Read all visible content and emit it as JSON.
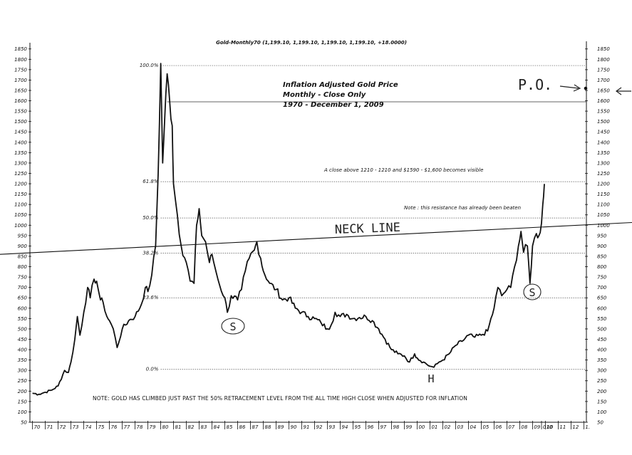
{
  "chart_data": {
    "type": "line",
    "header": "Gold-Monthly70 (1,199.10, 1,199.10, 1,199.10, 1,199.10, +18.0000)",
    "title_lines": [
      "Inflation Adjusted Gold Price",
      "Monthly - Close Only",
      "1970 - December 1, 2009"
    ],
    "annotations": {
      "breakout": "A close above 1210 - 1210 and $1590 - $1,600 becomes visible",
      "resistance": "Note : this resistance has already been beaten",
      "neckline": "NECK LINE",
      "price_objective": "P.O.",
      "left_shoulder": "S",
      "right_shoulder": "S",
      "head": "H",
      "footnote": "NOTE: GOLD HAS CLIMBED JUST PAST THE 50% RETRACEMENT LEVEL FROM THE ALL TIME HIGH CLOSE WHEN ADJUSTED FOR INFLATION"
    },
    "x_tick_labels": [
      "70",
      "71",
      "72",
      "73",
      "74",
      "75",
      "76",
      "77",
      "78",
      "79",
      "80",
      "81",
      "82",
      "83",
      "84",
      "85",
      "86",
      "87",
      "88",
      "89",
      "90",
      "91",
      "92",
      "93",
      "94",
      "95",
      "96",
      "97",
      "98",
      "99",
      "00",
      "01",
      "02",
      "03",
      "04",
      "05",
      "06",
      "07",
      "08",
      "09",
      "010",
      "10",
      "11",
      "12",
      "1."
    ],
    "x_tick_years": [
      1970,
      1971,
      1972,
      1973,
      1974,
      1975,
      1976,
      1977,
      1978,
      1979,
      1980,
      1981,
      1982,
      1983,
      1984,
      1985,
      1986,
      1987,
      1988,
      1989,
      1990,
      1991,
      1992,
      1993,
      1994,
      1995,
      1996,
      1997,
      1998,
      1999,
      2000,
      2001,
      2002,
      2003,
      2004,
      2005,
      2006,
      2007,
      2008,
      2009,
      2009.7,
      2010,
      2011,
      2012,
      2013
    ],
    "x_range": [
      1969.8,
      2013.2
    ],
    "y_range": [
      50,
      1880
    ],
    "y_left_ticks": [
      "50",
      "100",
      "150",
      "200",
      "250",
      "300",
      "350",
      "400",
      "450",
      "500",
      "550",
      "600",
      "650",
      "700",
      "750",
      "800",
      "850",
      "900",
      "950",
      "1000",
      "1050",
      "1100",
      "1150",
      "1200",
      "1250",
      "1300",
      "1350",
      "1400",
      "1450",
      "1500",
      "1550",
      "1600",
      "1650",
      "1700",
      "1750",
      "1800",
      "1850"
    ],
    "y_right_ticks": [
      "50",
      "100",
      "150",
      "200",
      "250",
      "300",
      "350",
      "400",
      "450",
      "500",
      "550",
      "600",
      "650",
      "700",
      "750",
      "800",
      "850",
      "900",
      "950",
      "1000",
      "1050",
      "1100",
      "1150",
      "1200",
      "1250",
      "1300",
      "1350",
      "1400",
      "1450",
      "1500",
      "1550",
      "1600",
      "1650",
      "1700",
      "1750",
      "1800",
      "1850"
    ],
    "fib_levels": [
      {
        "label": "100.0%",
        "value": 1770
      },
      {
        "label": "61.8%",
        "value": 1210
      },
      {
        "label": "50.0%",
        "value": 1035
      },
      {
        "label": "38.2%",
        "value": 865
      },
      {
        "label": "23.6%",
        "value": 650
      },
      {
        "label": "0.0%",
        "value": 305
      }
    ],
    "target_level": 1595,
    "neckline_points": [
      [
        1969.8,
        867
      ],
      [
        2013.2,
        1002
      ]
    ],
    "series": [
      {
        "values": [
          [
            1970.0,
            190
          ],
          [
            1970.5,
            185
          ],
          [
            1971.0,
            195
          ],
          [
            1971.5,
            205
          ],
          [
            1972.0,
            225
          ],
          [
            1972.5,
            300
          ],
          [
            1972.8,
            290
          ],
          [
            1973.0,
            340
          ],
          [
            1973.3,
            450
          ],
          [
            1973.5,
            560
          ],
          [
            1973.7,
            470
          ],
          [
            1974.0,
            580
          ],
          [
            1974.3,
            700
          ],
          [
            1974.5,
            650
          ],
          [
            1974.8,
            740
          ],
          [
            1975.0,
            730
          ],
          [
            1975.3,
            640
          ],
          [
            1975.5,
            630
          ],
          [
            1975.8,
            560
          ],
          [
            1976.0,
            540
          ],
          [
            1976.3,
            500
          ],
          [
            1976.6,
            410
          ],
          [
            1977.0,
            500
          ],
          [
            1977.5,
            540
          ],
          [
            1978.0,
            560
          ],
          [
            1978.5,
            620
          ],
          [
            1978.8,
            700
          ],
          [
            1979.0,
            680
          ],
          [
            1979.3,
            760
          ],
          [
            1979.6,
            900
          ],
          [
            1979.8,
            1250
          ],
          [
            1980.0,
            1780
          ],
          [
            1980.15,
            1300
          ],
          [
            1980.3,
            1500
          ],
          [
            1980.5,
            1730
          ],
          [
            1980.7,
            1600
          ],
          [
            1980.9,
            1480
          ],
          [
            1981.0,
            1200
          ],
          [
            1981.3,
            1050
          ],
          [
            1981.6,
            900
          ],
          [
            1982.0,
            820
          ],
          [
            1982.3,
            730
          ],
          [
            1982.6,
            720
          ],
          [
            1982.8,
            1000
          ],
          [
            1983.0,
            1080
          ],
          [
            1983.2,
            950
          ],
          [
            1983.5,
            920
          ],
          [
            1983.8,
            820
          ],
          [
            1984.0,
            860
          ],
          [
            1984.3,
            780
          ],
          [
            1984.6,
            710
          ],
          [
            1985.0,
            650
          ],
          [
            1985.2,
            580
          ],
          [
            1985.5,
            660
          ],
          [
            1986.0,
            640
          ],
          [
            1986.3,
            690
          ],
          [
            1986.6,
            780
          ],
          [
            1986.9,
            840
          ],
          [
            1987.3,
            880
          ],
          [
            1987.5,
            920
          ],
          [
            1987.8,
            840
          ],
          [
            1988.0,
            780
          ],
          [
            1988.5,
            720
          ],
          [
            1989.0,
            690
          ],
          [
            1989.5,
            640
          ],
          [
            1990.0,
            650
          ],
          [
            1990.5,
            600
          ],
          [
            1991.0,
            580
          ],
          [
            1991.5,
            560
          ],
          [
            1992.0,
            550
          ],
          [
            1992.5,
            530
          ],
          [
            1993.0,
            500
          ],
          [
            1993.3,
            520
          ],
          [
            1993.6,
            580
          ],
          [
            1994.0,
            560
          ],
          [
            1994.5,
            570
          ],
          [
            1995.0,
            550
          ],
          [
            1995.5,
            555
          ],
          [
            1996.0,
            560
          ],
          [
            1996.5,
            540
          ],
          [
            1997.0,
            500
          ],
          [
            1997.5,
            450
          ],
          [
            1998.0,
            400
          ],
          [
            1998.5,
            380
          ],
          [
            1999.0,
            370
          ],
          [
            1999.4,
            340
          ],
          [
            1999.8,
            380
          ],
          [
            2000.0,
            360
          ],
          [
            2000.5,
            340
          ],
          [
            2001.0,
            320
          ],
          [
            2001.3,
            315
          ],
          [
            2001.7,
            340
          ],
          [
            2002.0,
            350
          ],
          [
            2002.5,
            380
          ],
          [
            2003.0,
            420
          ],
          [
            2003.5,
            440
          ],
          [
            2004.0,
            470
          ],
          [
            2004.5,
            460
          ],
          [
            2005.0,
            470
          ],
          [
            2005.5,
            490
          ],
          [
            2006.0,
            600
          ],
          [
            2006.3,
            700
          ],
          [
            2006.6,
            660
          ],
          [
            2007.0,
            690
          ],
          [
            2007.3,
            700
          ],
          [
            2007.6,
            800
          ],
          [
            2007.9,
            900
          ],
          [
            2008.1,
            970
          ],
          [
            2008.3,
            870
          ],
          [
            2008.6,
            900
          ],
          [
            2008.8,
            720
          ],
          [
            2009.0,
            900
          ],
          [
            2009.3,
            960
          ],
          [
            2009.5,
            950
          ],
          [
            2009.7,
            1010
          ],
          [
            2009.8,
            1100
          ],
          [
            2009.92,
            1199
          ]
        ]
      }
    ]
  }
}
